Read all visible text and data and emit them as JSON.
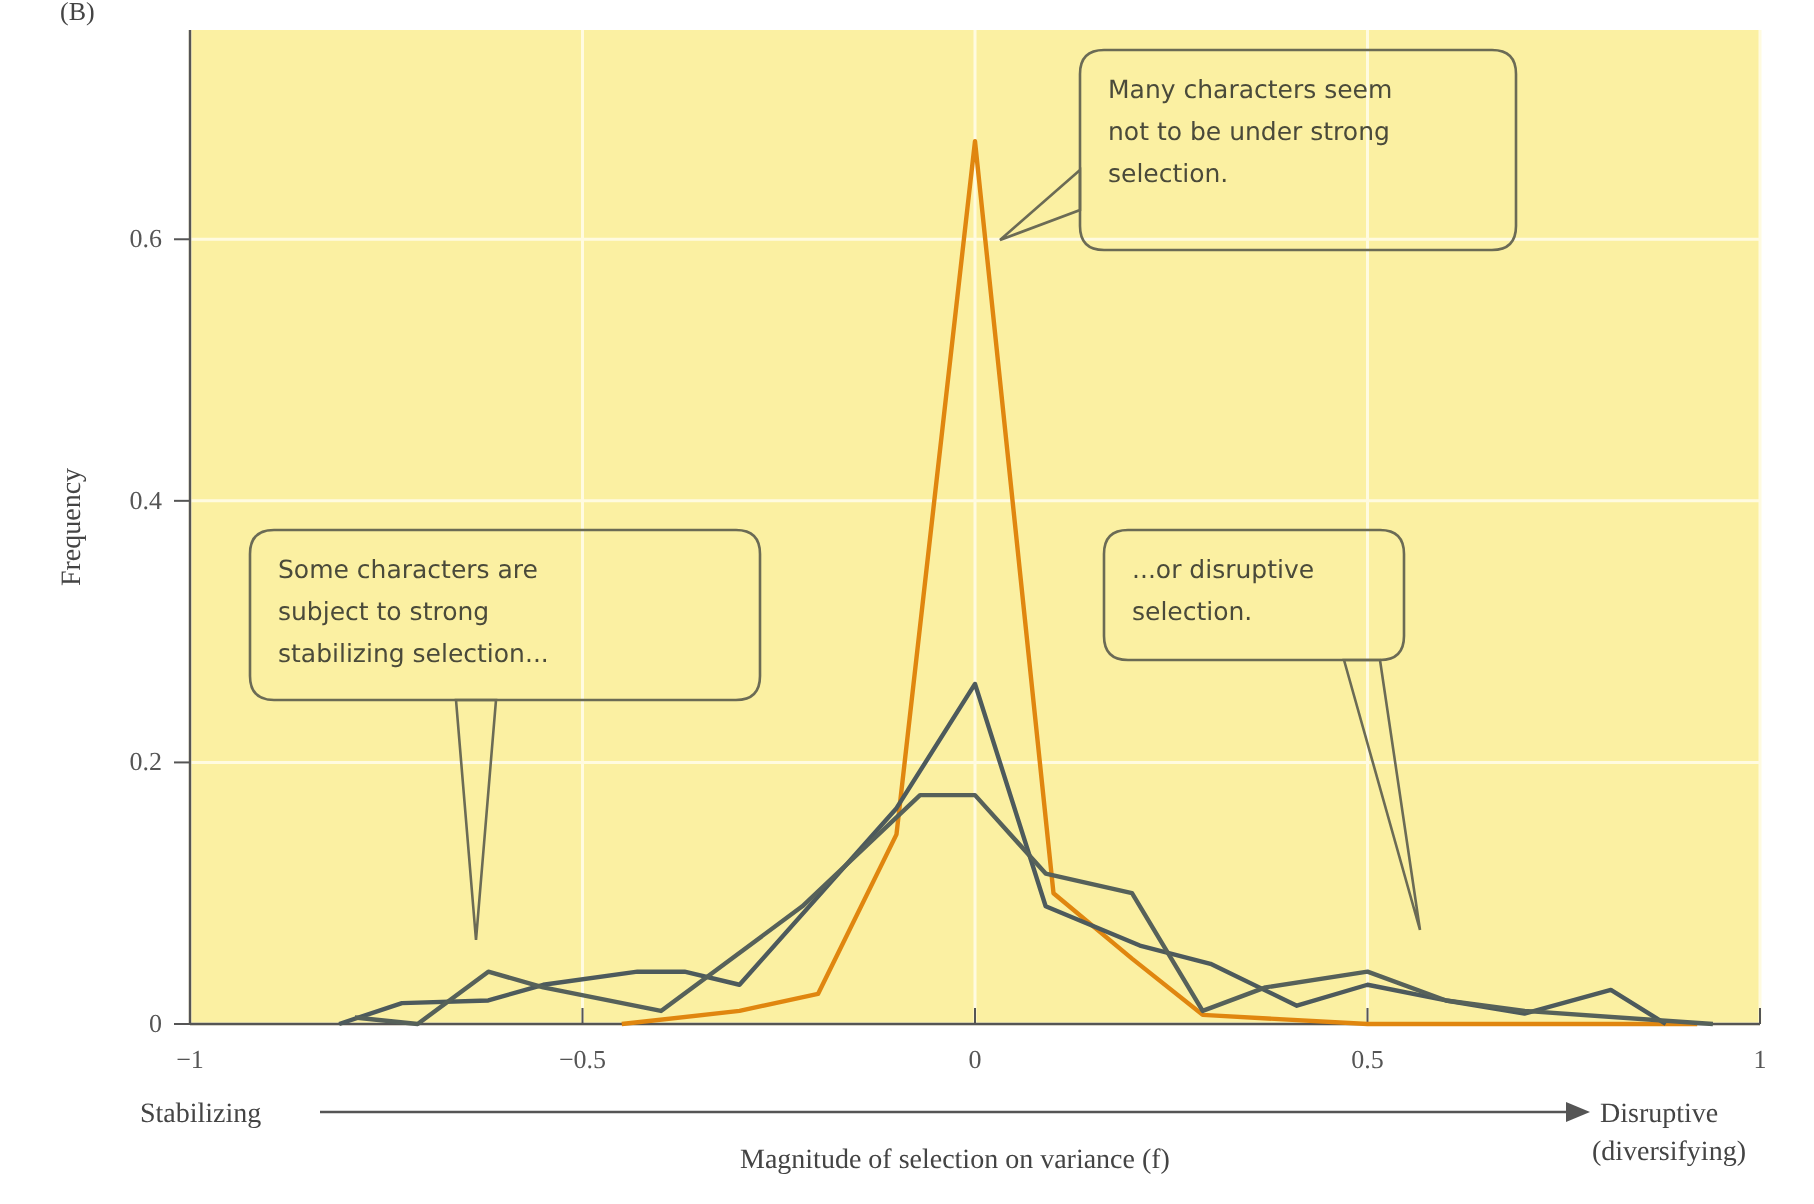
{
  "chart_data": {
    "type": "line",
    "xlabel": "Magnitude of selection on variance (f)",
    "ylabel": "Frequency",
    "xlim": [
      -1,
      1
    ],
    "xticks": [
      {
        "value": -1,
        "label": "−1"
      },
      {
        "value": -0.5,
        "label": "−0.5"
      },
      0,
      0.5,
      1
    ],
    "ylim": [
      0,
      0.76
    ],
    "yticks": [
      0,
      0.2,
      0.4,
      0.6
    ],
    "grid": true,
    "marker": "none",
    "line_style": "solid",
    "series": [
      {
        "color": "#e0860f",
        "x": [
          -0.45,
          -0.3,
          -0.2,
          -0.1,
          0,
          0.1,
          0.2,
          0.29,
          0.5,
          0.7,
          0.92
        ],
        "values": [
          0,
          0.01,
          0.023,
          0.145,
          0.675,
          0.1,
          0.05,
          0.007,
          0,
          0,
          0
        ]
      },
      {
        "color": "#4d5a5c",
        "x": [
          -0.81,
          -0.73,
          -0.62,
          -0.55,
          -0.43,
          -0.37,
          -0.3,
          -0.1,
          0,
          0.09,
          0.21,
          0.3,
          0.41,
          0.5,
          0.6,
          0.7,
          0.81,
          0.88
        ],
        "values": [
          0,
          0.016,
          0.018,
          0.03,
          0.04,
          0.04,
          0.03,
          0.165,
          0.26,
          0.09,
          0.06,
          0.046,
          0.014,
          0.03,
          0.018,
          0.008,
          0.026,
          0
        ]
      },
      {
        "color": "#56615a",
        "x": [
          -0.79,
          -0.71,
          -0.62,
          -0.55,
          -0.4,
          -0.22,
          -0.07,
          0,
          0.09,
          0.2,
          0.29,
          0.37,
          0.5,
          0.6,
          0.7,
          0.94
        ],
        "values": [
          0.005,
          0,
          0.04,
          0.028,
          0.01,
          0.09,
          0.175,
          0.175,
          0.115,
          0.1,
          0.01,
          0.028,
          0.04,
          0.018,
          0.01,
          0
        ]
      }
    ],
    "annotations": [
      "Many characters seem not to be under strong selection.",
      "Some characters are subject to strong stabilizing selection...",
      "...or disruptive selection.",
      "(B)",
      "Stabilizing",
      "Disruptive",
      "(diversifying)"
    ]
  }
}
